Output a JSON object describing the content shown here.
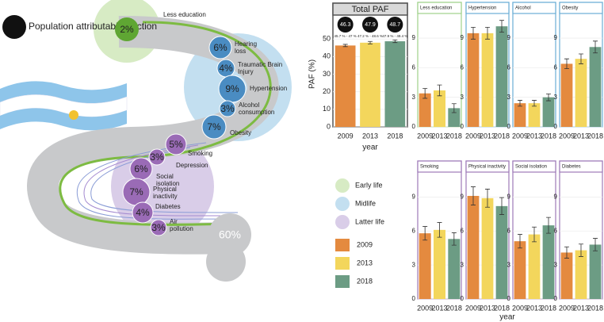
{
  "infographic": {
    "legend_title": "Population attributable fraction",
    "less_education": {
      "label": "Less education",
      "pct": "2%"
    },
    "midlife": [
      {
        "label": "Hearing loss",
        "pct": "6%"
      },
      {
        "label": "Traumatic Brain Injury",
        "pct": "4%"
      },
      {
        "label": "Hypertension",
        "pct": "9%"
      },
      {
        "label": "Alcohol consumption",
        "pct": "3%"
      },
      {
        "label": "Obesity",
        "pct": "7%"
      }
    ],
    "latter": [
      {
        "label": "Smoking",
        "pct": "5%"
      },
      {
        "label": "Depression",
        "pct": "3%"
      },
      {
        "label": "Social isolation",
        "pct": "6%"
      },
      {
        "label": "Physical inactivity",
        "pct": "7%"
      },
      {
        "label": "Diabetes",
        "pct": "4%"
      },
      {
        "label": "Air pollution",
        "pct": "3%"
      }
    ],
    "remaining": "60%",
    "stage_legend": [
      {
        "label": "Early life",
        "color": "#d7ebc4"
      },
      {
        "label": "Midlife",
        "color": "#c3dff0"
      },
      {
        "label": "Latter life",
        "color": "#d9cde8"
      }
    ],
    "year_legend": [
      {
        "label": "2009",
        "color": "#e48a3f"
      },
      {
        "label": "2013",
        "color": "#f3d65c"
      },
      {
        "label": "2018",
        "color": "#6c9c84"
      }
    ],
    "panels_xlabel": "year"
  },
  "chart_data": [
    {
      "type": "bar",
      "title": "Total PAF",
      "ylabel": "PAF (%)",
      "xlabel": "year",
      "categories": [
        "2009",
        "2013",
        "2018"
      ],
      "values": [
        46.3,
        47.9,
        48.7
      ],
      "errors": [
        0.65,
        0.7,
        0.75
      ],
      "interval_labels": [
        "45.7 % - 47 %",
        "47.2 % - 48.6 %",
        "47.9 % - 49.4 %"
      ],
      "colors": [
        "#e48a3f",
        "#f3d65c",
        "#6c9c84"
      ],
      "frame_color": "#555555",
      "ylim": [
        0,
        60
      ],
      "yticks": [
        0,
        10,
        20,
        30,
        40,
        50
      ]
    },
    {
      "type": "bar",
      "title": "Less education",
      "categories": [
        "2009",
        "2013",
        "2018"
      ],
      "values": [
        3.4,
        3.7,
        1.9
      ],
      "errors": [
        0.5,
        0.55,
        0.45
      ],
      "colors": [
        "#e48a3f",
        "#f3d65c",
        "#6c9c84"
      ],
      "frame_color": "#9fd18a",
      "ylim": [
        0,
        11.5
      ],
      "yticks": [
        0,
        3,
        6,
        9
      ]
    },
    {
      "type": "bar",
      "title": "Hypertension",
      "categories": [
        "2009",
        "2013",
        "2018"
      ],
      "values": [
        9.5,
        9.5,
        10.2
      ],
      "errors": [
        0.6,
        0.6,
        0.6
      ],
      "colors": [
        "#e48a3f",
        "#f3d65c",
        "#6c9c84"
      ],
      "frame_color": "#6baed6",
      "ylim": [
        0,
        11.5
      ],
      "yticks": [
        0,
        3,
        6,
        9
      ]
    },
    {
      "type": "bar",
      "title": "Alcohol",
      "categories": [
        "2009",
        "2013",
        "2018"
      ],
      "values": [
        2.4,
        2.4,
        3.0
      ],
      "errors": [
        0.3,
        0.3,
        0.35
      ],
      "colors": [
        "#e48a3f",
        "#f3d65c",
        "#6c9c84"
      ],
      "frame_color": "#6baed6",
      "ylim": [
        0,
        11.5
      ],
      "yticks": [
        0,
        3,
        6,
        9
      ]
    },
    {
      "type": "bar",
      "title": "Obesity",
      "categories": [
        "2009",
        "2013",
        "2018"
      ],
      "values": [
        6.4,
        6.9,
        8.1
      ],
      "errors": [
        0.5,
        0.5,
        0.6
      ],
      "colors": [
        "#e48a3f",
        "#f3d65c",
        "#6c9c84"
      ],
      "frame_color": "#6baed6",
      "ylim": [
        0,
        11.5
      ],
      "yticks": [
        0,
        3,
        6,
        9
      ]
    },
    {
      "type": "bar",
      "title": "Smoking",
      "categories": [
        "2009",
        "2013",
        "2018"
      ],
      "values": [
        5.8,
        6.1,
        5.3
      ],
      "errors": [
        0.6,
        0.65,
        0.55
      ],
      "colors": [
        "#e48a3f",
        "#f3d65c",
        "#6c9c84"
      ],
      "frame_color": "#9e7ab8",
      "ylim": [
        0,
        11.2
      ],
      "yticks": [
        0,
        3,
        6,
        9
      ]
    },
    {
      "type": "bar",
      "title": "Physical inactivity",
      "categories": [
        "2009",
        "2013",
        "2018"
      ],
      "values": [
        9.1,
        8.9,
        8.2
      ],
      "errors": [
        0.8,
        0.8,
        0.75
      ],
      "colors": [
        "#e48a3f",
        "#f3d65c",
        "#6c9c84"
      ],
      "frame_color": "#9e7ab8",
      "ylim": [
        0,
        11.2
      ],
      "yticks": [
        0,
        3,
        6,
        9
      ]
    },
    {
      "type": "bar",
      "title": "Social isolation",
      "categories": [
        "2009",
        "2013",
        "2018"
      ],
      "values": [
        5.1,
        5.7,
        6.5
      ],
      "errors": [
        0.6,
        0.65,
        0.7
      ],
      "colors": [
        "#e48a3f",
        "#f3d65c",
        "#6c9c84"
      ],
      "frame_color": "#9e7ab8",
      "ylim": [
        0,
        11.2
      ],
      "yticks": [
        0,
        3,
        6,
        9
      ]
    },
    {
      "type": "bar",
      "title": "Diabetes",
      "categories": [
        "2009",
        "2013",
        "2018"
      ],
      "values": [
        4.1,
        4.3,
        4.8
      ],
      "errors": [
        0.5,
        0.55,
        0.55
      ],
      "colors": [
        "#e48a3f",
        "#f3d65c",
        "#6c9c84"
      ],
      "frame_color": "#9e7ab8",
      "ylim": [
        0,
        11.2
      ],
      "yticks": [
        0,
        3,
        6,
        9
      ]
    }
  ]
}
